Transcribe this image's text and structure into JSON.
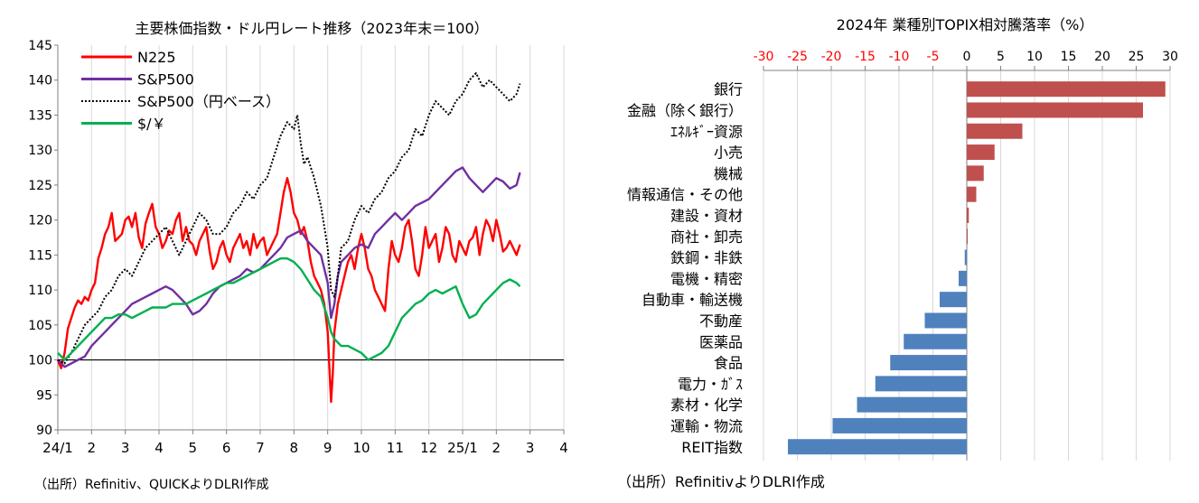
{
  "chart_data": [
    {
      "type": "line",
      "title": "主要株価指数・ドル円レート推移（2023年末＝100）",
      "source": "（出所）Refinitiv、QUICKよりDLRI作成",
      "ylim": [
        90,
        145
      ],
      "y_ticks": [
        "90",
        "95",
        "100",
        "105",
        "110",
        "115",
        "120",
        "125",
        "130",
        "135",
        "140",
        "145"
      ],
      "x_ticks": [
        "24/1",
        "2",
        "3",
        "4",
        "5",
        "6",
        "7",
        "8",
        "9",
        "10",
        "11",
        "12",
        "25/1",
        "2",
        "3",
        "4"
      ],
      "baseline": 100,
      "grid": true,
      "legend_position": "top-left",
      "x_unit": "months since 2024-01 (0 = 24/1, 15 = 4)",
      "series": [
        {
          "name": "N225",
          "color": "#ff0000",
          "x": [
            0,
            0.1,
            0.2,
            0.3,
            0.4,
            0.5,
            0.6,
            0.7,
            0.8,
            0.9,
            1.0,
            1.1,
            1.2,
            1.3,
            1.4,
            1.5,
            1.6,
            1.7,
            1.8,
            1.9,
            2.0,
            2.1,
            2.2,
            2.3,
            2.4,
            2.5,
            2.6,
            2.7,
            2.8,
            2.9,
            3.0,
            3.1,
            3.2,
            3.3,
            3.4,
            3.5,
            3.6,
            3.7,
            3.8,
            3.9,
            4.0,
            4.1,
            4.2,
            4.3,
            4.4,
            4.5,
            4.6,
            4.7,
            4.8,
            4.9,
            5.0,
            5.1,
            5.2,
            5.3,
            5.4,
            5.5,
            5.6,
            5.7,
            5.8,
            5.9,
            6.0,
            6.1,
            6.2,
            6.3,
            6.4,
            6.5,
            6.6,
            6.7,
            6.8,
            6.9,
            7.0,
            7.1,
            7.2,
            7.3,
            7.4,
            7.5,
            7.6,
            7.7,
            7.8,
            7.9,
            8.0,
            8.05,
            8.1,
            8.15,
            8.2,
            8.3,
            8.4,
            8.5,
            8.6,
            8.7,
            8.8,
            8.9,
            9.0,
            9.1,
            9.2,
            9.3,
            9.4,
            9.5,
            9.6,
            9.7,
            9.8,
            9.9,
            10.0,
            10.1,
            10.2,
            10.3,
            10.4,
            10.5,
            10.6,
            10.7,
            10.8,
            10.9,
            11.0,
            11.1,
            11.2,
            11.3,
            11.4,
            11.5,
            11.6,
            11.7,
            11.8,
            11.9,
            12.0,
            12.1,
            12.2,
            12.3,
            12.4,
            12.5,
            12.6,
            12.7,
            12.8,
            12.9,
            13.0,
            13.1,
            13.2,
            13.3,
            13.4,
            13.5,
            13.6,
            13.7
          ],
          "y": [
            100,
            98.8,
            101,
            104.5,
            106,
            107.5,
            108.5,
            108,
            109,
            108.5,
            110,
            111,
            114.5,
            116,
            118,
            119,
            121,
            117,
            117.5,
            118,
            120,
            120.5,
            119,
            121,
            117.5,
            116,
            119.5,
            121,
            122.3,
            119,
            118,
            116,
            117,
            118.5,
            118,
            120,
            121,
            117,
            119,
            117,
            116.5,
            115,
            117,
            118,
            119,
            115.5,
            113,
            114,
            116,
            117,
            115,
            114,
            116,
            117,
            118,
            116,
            117,
            115,
            118,
            116,
            117,
            117.5,
            115,
            116,
            117,
            118,
            121,
            124,
            126,
            124,
            121,
            120,
            118,
            119,
            117,
            114,
            112,
            111,
            110,
            108,
            104,
            99,
            94,
            98,
            104,
            108,
            110,
            112,
            114,
            115,
            113,
            116,
            118,
            116,
            113,
            112,
            110,
            109,
            108,
            107,
            113,
            117,
            115,
            114,
            116,
            119,
            120,
            117,
            113,
            112,
            115,
            119,
            116,
            117,
            118,
            114,
            116,
            119,
            118,
            115,
            114,
            117,
            116,
            115,
            117,
            117.5,
            119,
            115,
            118,
            120,
            119,
            117,
            120,
            118,
            115.5,
            116,
            117,
            116,
            115,
            116.5
          ]
        },
        {
          "name": "S&P500",
          "color": "#7030a0",
          "x": [
            0,
            0.2,
            0.4,
            0.6,
            0.8,
            1.0,
            1.2,
            1.4,
            1.6,
            1.8,
            2.0,
            2.2,
            2.4,
            2.6,
            2.8,
            3.0,
            3.2,
            3.4,
            3.6,
            3.8,
            4.0,
            4.2,
            4.4,
            4.6,
            4.8,
            5.0,
            5.2,
            5.4,
            5.6,
            5.8,
            6.0,
            6.2,
            6.4,
            6.6,
            6.8,
            7.0,
            7.2,
            7.4,
            7.6,
            7.8,
            8.0,
            8.1,
            8.2,
            8.3,
            8.4,
            8.6,
            8.8,
            9.0,
            9.2,
            9.4,
            9.6,
            9.8,
            10.0,
            10.2,
            10.4,
            10.6,
            10.8,
            11.0,
            11.2,
            11.4,
            11.6,
            11.8,
            12.0,
            12.2,
            12.4,
            12.6,
            12.8,
            13.0,
            13.2,
            13.4,
            13.6,
            13.7
          ],
          "y": [
            100,
            99,
            99.5,
            100,
            100.5,
            102,
            103,
            104,
            105,
            106,
            107,
            108,
            108.5,
            109,
            109.5,
            110,
            110.5,
            110,
            109,
            108,
            106.5,
            107,
            108,
            109.5,
            110.5,
            111,
            111.5,
            112,
            113,
            112.5,
            113,
            114,
            115,
            116,
            117.5,
            118,
            118.5,
            117,
            116,
            115,
            111,
            106,
            108,
            112,
            114,
            115,
            116,
            116.5,
            116,
            118,
            119,
            120,
            121,
            120,
            121,
            122,
            122.5,
            123,
            124,
            125,
            126,
            127,
            127.5,
            126,
            125,
            124,
            125,
            126,
            125.5,
            124.5,
            125,
            126.8
          ]
        },
        {
          "name": "S&P500（円ベース）",
          "color": "#000000",
          "dash": true,
          "x": [
            0,
            0.2,
            0.4,
            0.6,
            0.8,
            1.0,
            1.2,
            1.4,
            1.6,
            1.8,
            2.0,
            2.2,
            2.4,
            2.6,
            2.8,
            3.0,
            3.2,
            3.4,
            3.6,
            3.8,
            4.0,
            4.2,
            4.4,
            4.6,
            4.8,
            5.0,
            5.2,
            5.4,
            5.6,
            5.8,
            6.0,
            6.2,
            6.4,
            6.6,
            6.8,
            7.0,
            7.1,
            7.2,
            7.3,
            7.4,
            7.6,
            7.8,
            8.0,
            8.1,
            8.2,
            8.3,
            8.4,
            8.6,
            8.8,
            9.0,
            9.2,
            9.4,
            9.6,
            9.8,
            10.0,
            10.2,
            10.4,
            10.6,
            10.8,
            11.0,
            11.2,
            11.4,
            11.6,
            11.8,
            12.0,
            12.2,
            12.4,
            12.6,
            12.8,
            13.0,
            13.2,
            13.4,
            13.6,
            13.7
          ],
          "y": [
            100,
            99.5,
            101,
            103,
            105,
            106,
            107,
            109,
            110,
            112,
            113,
            112,
            114,
            116,
            117,
            118,
            119,
            117,
            115,
            117,
            119,
            121,
            120,
            118,
            118,
            119,
            121,
            122,
            124,
            123,
            125,
            126,
            129,
            132,
            134,
            133,
            135,
            131,
            128,
            129,
            126,
            122,
            116,
            110,
            109,
            112,
            116,
            117,
            120,
            122,
            121,
            123,
            124,
            126,
            127,
            129,
            130,
            133,
            132,
            135,
            137,
            136,
            135,
            137,
            138,
            140,
            141,
            139,
            140,
            139,
            138,
            137,
            138,
            139.5
          ]
        },
        {
          "name": "$/￥",
          "color": "#00b050",
          "x": [
            0,
            0.2,
            0.4,
            0.6,
            0.8,
            1.0,
            1.2,
            1.4,
            1.6,
            1.8,
            2.0,
            2.2,
            2.4,
            2.6,
            2.8,
            3.0,
            3.2,
            3.4,
            3.6,
            3.8,
            4.0,
            4.2,
            4.4,
            4.6,
            4.8,
            5.0,
            5.2,
            5.4,
            5.6,
            5.8,
            6.0,
            6.2,
            6.4,
            6.6,
            6.8,
            7.0,
            7.2,
            7.4,
            7.6,
            7.8,
            8.0,
            8.1,
            8.2,
            8.4,
            8.6,
            8.8,
            9.0,
            9.2,
            9.4,
            9.6,
            9.8,
            10.0,
            10.2,
            10.4,
            10.6,
            10.8,
            11.0,
            11.2,
            11.4,
            11.6,
            11.8,
            12.0,
            12.2,
            12.4,
            12.6,
            12.8,
            13.0,
            13.2,
            13.4,
            13.6,
            13.7
          ],
          "y": [
            101,
            100,
            101,
            102,
            103,
            104,
            105,
            106,
            106,
            106.5,
            106.5,
            106,
            106.5,
            107,
            107.5,
            107.5,
            107.5,
            108,
            108,
            108,
            108.5,
            109,
            109.5,
            110,
            110.5,
            111,
            111,
            111.5,
            112,
            112.5,
            113,
            113.5,
            114,
            114.5,
            114.5,
            114,
            113,
            111.5,
            110,
            109,
            106,
            104,
            103,
            102,
            102,
            101.5,
            101,
            100,
            100.5,
            101,
            102,
            104,
            106,
            107,
            108,
            108.5,
            109.5,
            110,
            109.5,
            110,
            110.5,
            108,
            106,
            106.5,
            108,
            109,
            110,
            111,
            111.5,
            111,
            110.5
          ]
        }
      ]
    },
    {
      "type": "bar",
      "orientation": "horizontal",
      "title": "2024年 業種別TOPIX相対騰落率（%）",
      "source": "（出所）RefinitivよりDLRI作成",
      "xlim": [
        -30,
        30
      ],
      "x_ticks": [
        "-30",
        "-25",
        "-20",
        "-15",
        "-10",
        "-5",
        "0",
        "5",
        "10",
        "15",
        "20",
        "25",
        "30"
      ],
      "positive_color": "#c0504d",
      "negative_color": "#4f81bd",
      "negative_tick_color": "#ff0000",
      "grid": true,
      "categories": [
        "銀行",
        "金融（除く銀行）",
        "ｴﾈﾙｷﾞｰ資源",
        "小売",
        "機械",
        "情報通信・その他",
        "建設・資材",
        "商社・卸売",
        "鉄鋼・非鉄",
        "電機・精密",
        "自動車・輸送機",
        "不動産",
        "医薬品",
        "食品",
        "電力・ｶﾞｽ",
        "素材・化学",
        "運輸・物流",
        "REIT指数"
      ],
      "values": [
        29.3,
        26,
        8.2,
        4.1,
        2.5,
        1.4,
        0.3,
        0.1,
        -0.3,
        -1.2,
        -4,
        -6.2,
        -9.3,
        -11.3,
        -13.5,
        -16.2,
        -19.8,
        -26.4
      ]
    }
  ]
}
